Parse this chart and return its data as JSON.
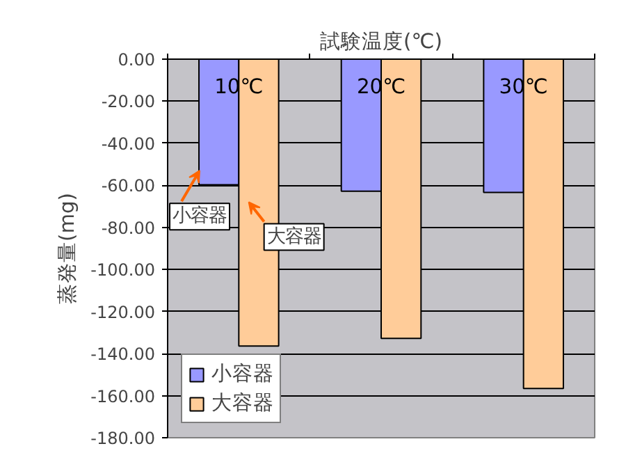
{
  "chart_data": {
    "type": "bar",
    "xlabel": "試験温度(℃)",
    "ylabel": "蒸発量(mg)",
    "categories": [
      "10℃",
      "20℃",
      "30℃"
    ],
    "series": [
      {
        "name": "小容器",
        "color": "#9999ff",
        "values": [
          -59.7,
          -62.8,
          -63.4
        ]
      },
      {
        "name": "大容器",
        "color": "#ffcc99",
        "values": [
          -136.4,
          -132.8,
          -156.6
        ]
      }
    ],
    "ylim": [
      -180,
      0
    ],
    "yticks": [
      {
        "value": 0,
        "label": "0.00"
      },
      {
        "value": -20,
        "label": "-20.00"
      },
      {
        "value": -40,
        "label": "-40.00"
      },
      {
        "value": -60,
        "label": "-60.00"
      },
      {
        "value": -80,
        "label": "-80.00"
      },
      {
        "value": -100,
        "label": "-100.00"
      },
      {
        "value": -120,
        "label": "-120.00"
      },
      {
        "value": -140,
        "label": "-140.00"
      },
      {
        "value": -160,
        "label": "-160.00"
      },
      {
        "value": -180,
        "label": "-180.00"
      }
    ],
    "annotations": [
      {
        "text": "小容器",
        "x": "10℃",
        "y": -53
      },
      {
        "text": "大容器",
        "x": "10℃",
        "y": -68
      }
    ],
    "grid": "y",
    "legend": "bottom left"
  }
}
